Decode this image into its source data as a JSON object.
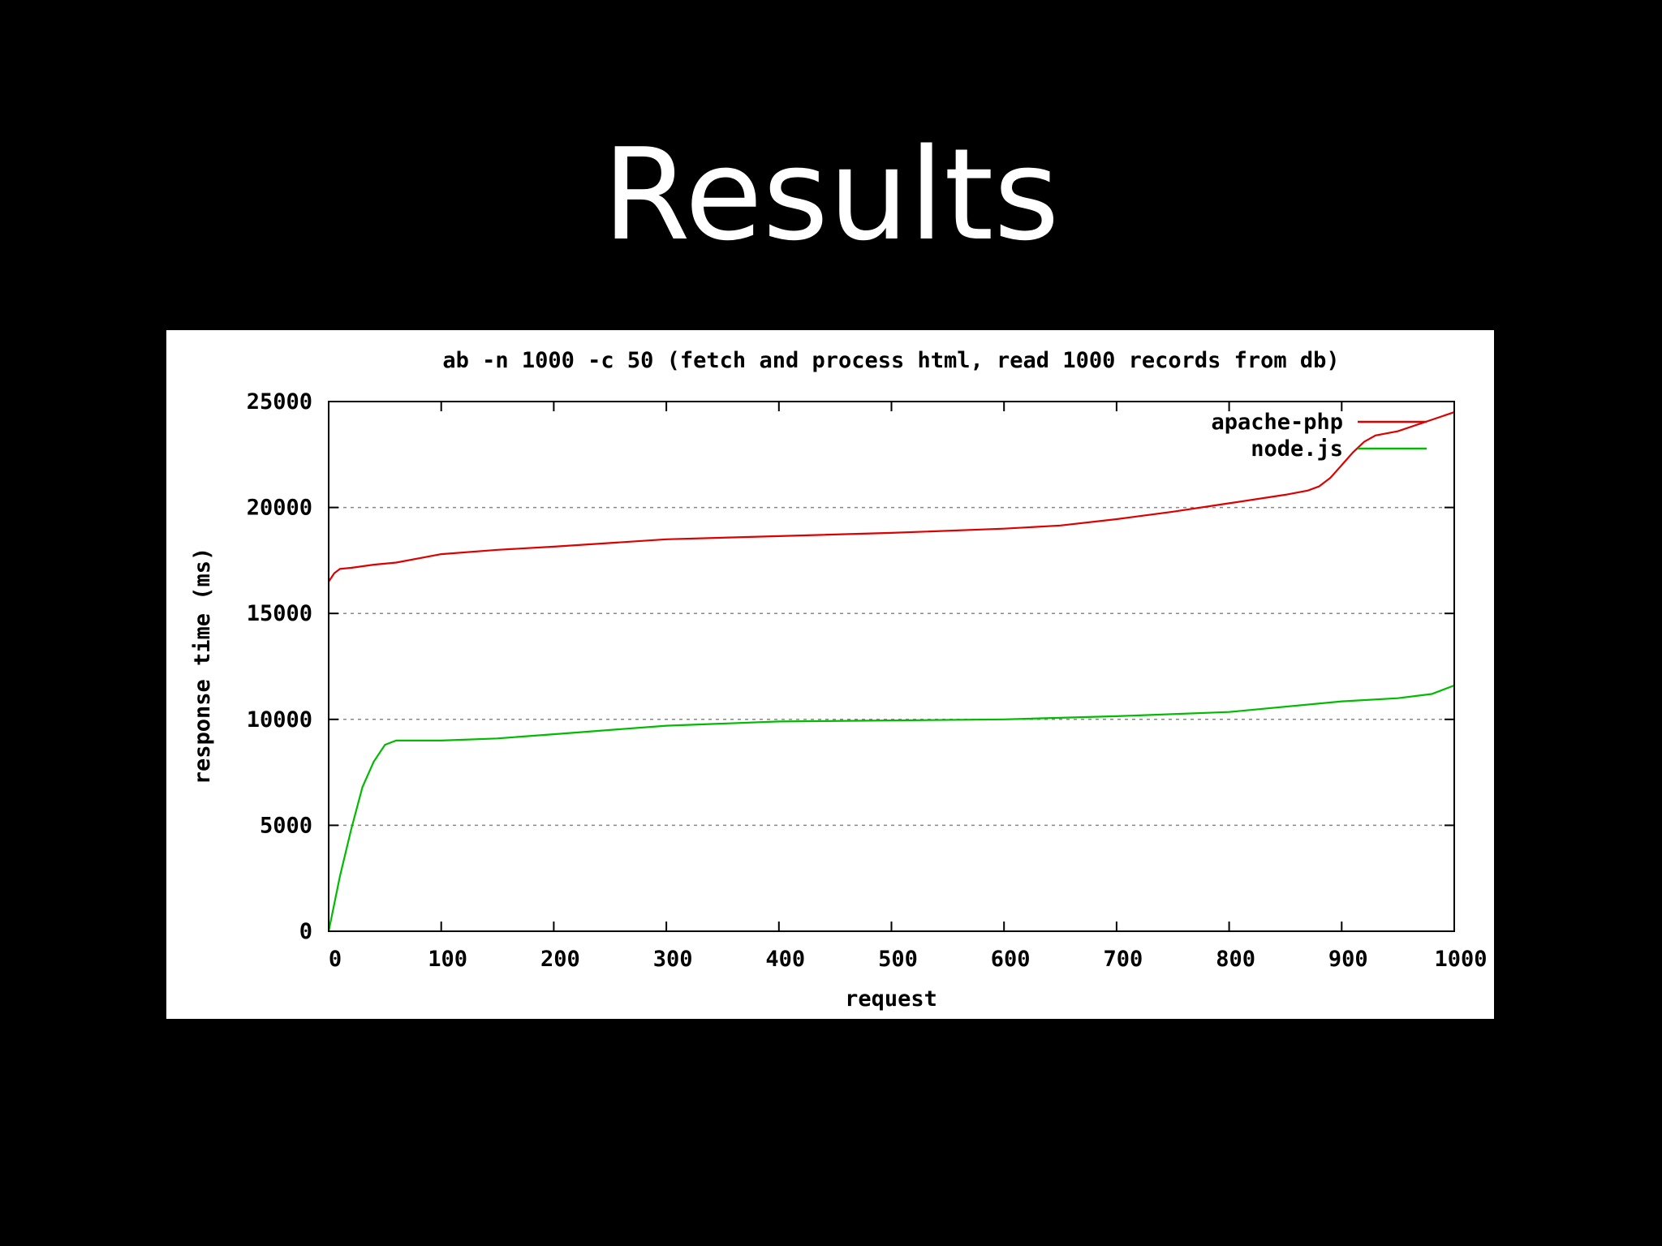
{
  "slide": {
    "title": "Results"
  },
  "chart_data": {
    "type": "line",
    "title": "ab -n 1000 -c 50 (fetch and process html, read 1000 records from db)",
    "xlabel": "request",
    "ylabel": "response time (ms)",
    "xlim": [
      0,
      1000
    ],
    "ylim": [
      0,
      25000
    ],
    "xticks": [
      "0",
      "100",
      "200",
      "300",
      "400",
      "500",
      "600",
      "700",
      "800",
      "900",
      "1000"
    ],
    "yticks": [
      "0",
      "5000",
      "10000",
      "15000",
      "20000",
      "25000"
    ],
    "grid": "horizontal dashed",
    "legend": "top-right",
    "series": [
      {
        "name": "apache-php",
        "color": "#dd0000",
        "x": [
          0,
          5,
          10,
          20,
          40,
          60,
          80,
          100,
          150,
          200,
          300,
          400,
          500,
          600,
          650,
          700,
          750,
          800,
          850,
          870,
          880,
          890,
          900,
          910,
          920,
          930,
          950,
          1000
        ],
        "y": [
          16500,
          16900,
          17100,
          17150,
          17300,
          17400,
          17600,
          17800,
          18000,
          18150,
          18500,
          18650,
          18800,
          19000,
          19150,
          19450,
          19800,
          20200,
          20600,
          20800,
          21000,
          21400,
          22000,
          22600,
          23100,
          23400,
          23600,
          24500
        ]
      },
      {
        "name": "node.js",
        "color": "#00bb00",
        "x": [
          0,
          10,
          20,
          30,
          40,
          50,
          60,
          100,
          150,
          200,
          300,
          400,
          500,
          600,
          700,
          800,
          900,
          950,
          980,
          1000
        ],
        "y": [
          0,
          2600,
          4800,
          6800,
          8000,
          8800,
          9000,
          9000,
          9100,
          9300,
          9700,
          9900,
          9950,
          10000,
          10150,
          10350,
          10850,
          11000,
          11200,
          11600
        ]
      }
    ]
  }
}
